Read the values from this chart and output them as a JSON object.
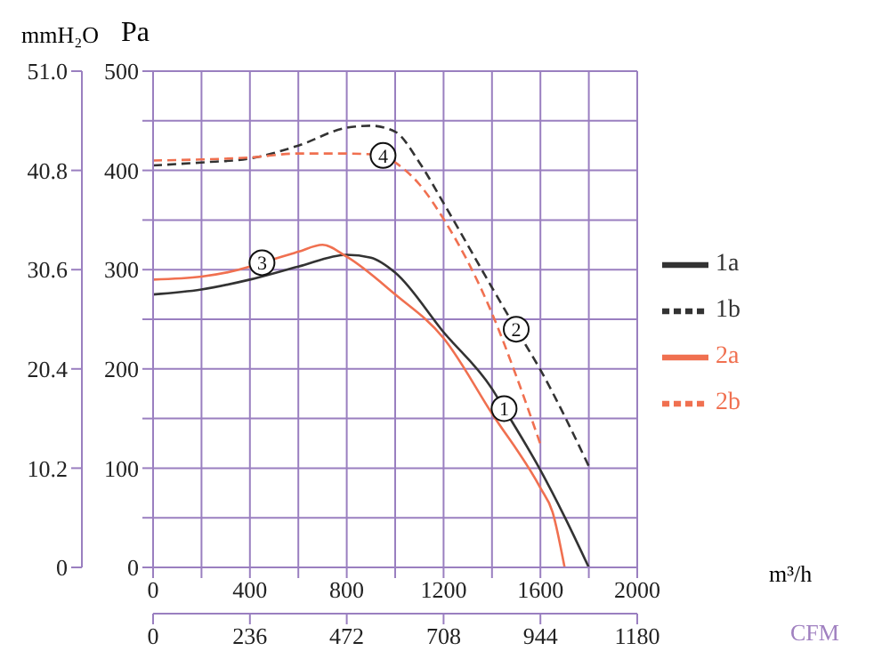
{
  "chart_data": {
    "type": "line",
    "ylabel": "Pa",
    "y2label": "mmH₂O",
    "xlabel": "m³/h",
    "x2label": "CFM",
    "xlim": [
      0,
      2000
    ],
    "xticks": [
      0,
      {
        "value": 200,
        "label": null
      },
      400,
      {
        "value": 600,
        "label": null
      },
      800,
      {
        "value": 1000,
        "label": null
      },
      1200,
      {
        "value": 1400,
        "label": null
      },
      1600,
      {
        "value": 1800,
        "label": null
      },
      2000
    ],
    "ylim": [
      0,
      500
    ],
    "yticks": [
      0,
      {
        "value": 50,
        "label": null
      },
      100,
      {
        "value": 150,
        "label": null
      },
      200,
      {
        "value": 250,
        "label": null
      },
      300,
      {
        "value": 350,
        "label": null
      },
      400,
      {
        "value": 450,
        "label": null
      },
      500
    ],
    "y2lim": [
      0,
      51
    ],
    "y2ticks": [
      0,
      10.2,
      20.4,
      30.6,
      40.8,
      {
        "value": 51,
        "label": "51.0"
      }
    ],
    "x2lim": [
      0,
      1180
    ],
    "x2ticks": [
      0,
      236,
      472,
      708,
      944,
      1180
    ],
    "grid": true,
    "legend": "right",
    "marker": "none",
    "series": [
      {
        "name": "1a",
        "color": "#333333",
        "line_style": "solid",
        "x": [
          0,
          200,
          400,
          600,
          800,
          900,
          1000,
          1200,
          1400,
          1450,
          1600,
          1700,
          1800
        ],
        "values": [
          275,
          280,
          290,
          303,
          315,
          312,
          297,
          237,
          180,
          160,
          98,
          51,
          0
        ]
      },
      {
        "name": "1b",
        "color": "#333333",
        "line_style": "dashed",
        "x": [
          0,
          200,
          400,
          600,
          800,
          900,
          1000,
          1100,
          1200,
          1400,
          1500,
          1600,
          1800
        ],
        "values": [
          405,
          408,
          412,
          425,
          443,
          445,
          439,
          408,
          367,
          282,
          240,
          199,
          102
        ]
      },
      {
        "name": "2a",
        "color": "#f07050",
        "line_style": "solid",
        "x": [
          0,
          200,
          400,
          450,
          600,
          700,
          800,
          1000,
          1200,
          1400,
          1600,
          1650,
          1700
        ],
        "values": [
          290,
          293,
          303,
          307,
          318,
          325,
          313,
          275,
          231,
          155,
          80,
          56,
          0
        ]
      },
      {
        "name": "2b",
        "color": "#f07050",
        "line_style": "dashed",
        "x": [
          0,
          200,
          400,
          600,
          800,
          950,
          1000,
          1100,
          1200,
          1400,
          1500,
          1600
        ],
        "values": [
          410,
          411,
          413,
          417,
          417,
          415,
          408,
          386,
          351,
          256,
          193,
          124
        ]
      }
    ],
    "annotations": [
      {
        "text": "1",
        "x": 1450,
        "y": 160
      },
      {
        "text": "2",
        "x": 1500,
        "y": 240
      },
      {
        "text": "3",
        "x": 450,
        "y": 307
      },
      {
        "text": "4",
        "x": 950,
        "y": 415
      }
    ]
  }
}
